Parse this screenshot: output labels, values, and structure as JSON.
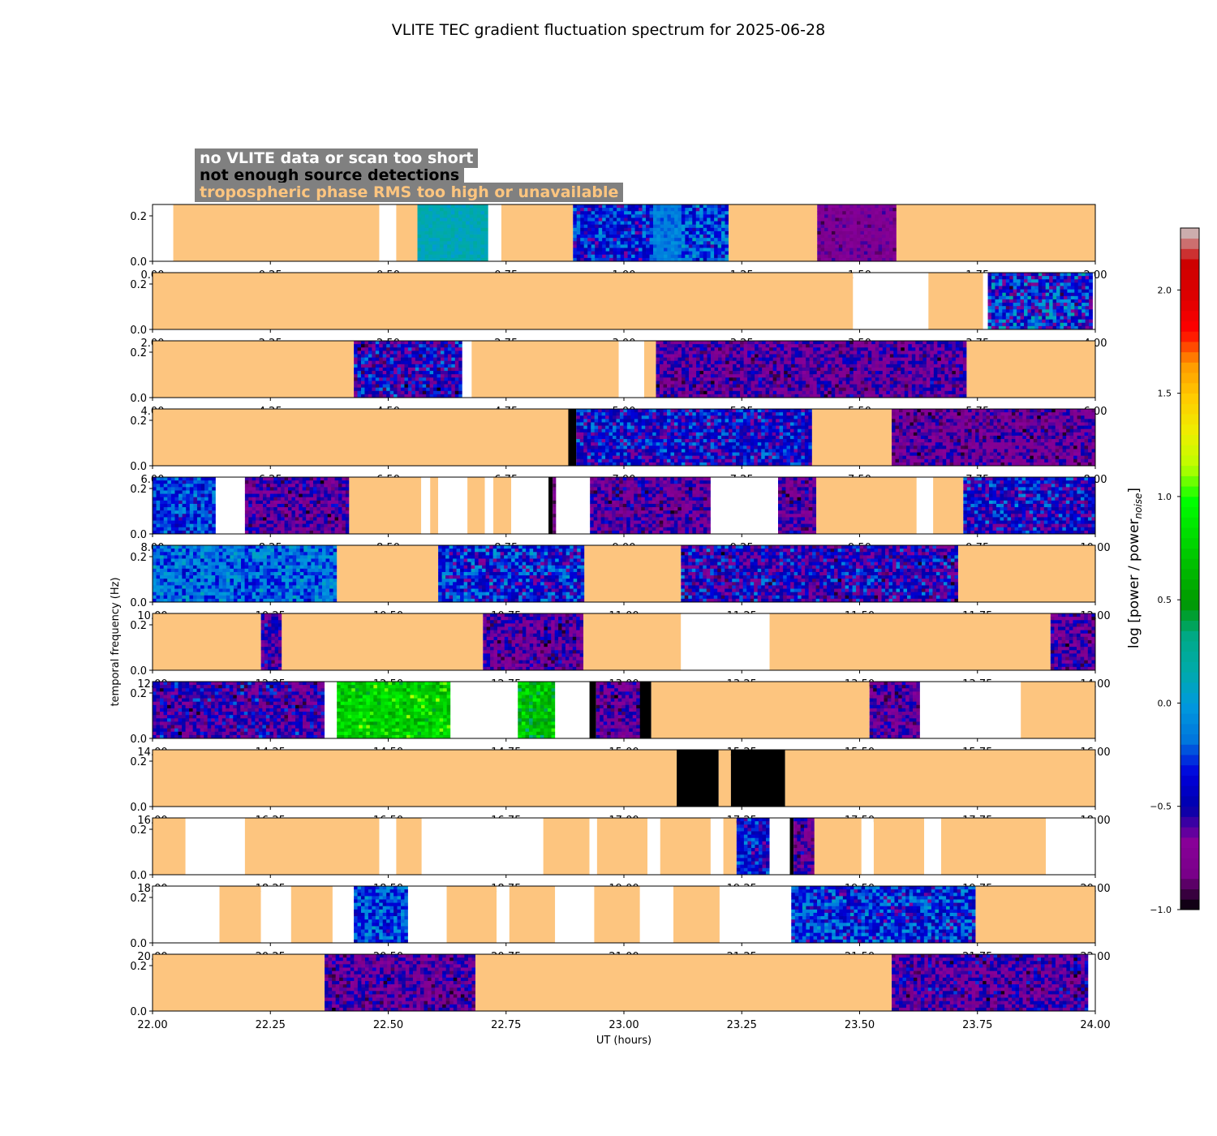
{
  "chart_data": {
    "type": "heatmap",
    "title": "VLITE TEC gradient fluctuation spectrum for 2025-06-28",
    "xlabel": "UT (hours)",
    "ylabel": "temporal frequency (Hz)",
    "y_ticks": [
      "0.0",
      "0.2"
    ],
    "ylim": [
      0,
      0.25
    ],
    "colorbar": {
      "label": "log [power / power",
      "label_subscript": "noise",
      "label_close": "]",
      "ticks": [
        "−1.0",
        "−0.5",
        "0.0",
        "0.5",
        "1.0",
        "1.5",
        "2.0"
      ],
      "range": [
        -1.0,
        2.3
      ],
      "colormap": "nipy_spectral"
    },
    "legend": [
      {
        "label": "no VLITE data or scan too short",
        "color": "#ffffff"
      },
      {
        "label": "not enough source detections",
        "color": "#000000"
      },
      {
        "label": "tropospheric phase RMS too high or unavailable",
        "color": "#fdc57f"
      }
    ],
    "category_colors": {
      "none": "#ffffff",
      "det": "#000000",
      "trop": "#fdc57f"
    },
    "panels": [
      {
        "range": [
          0,
          2
        ],
        "ticks": [
          "0.00",
          "0.25",
          "0.50",
          "0.75",
          "1.00",
          "1.25",
          "1.50",
          "1.75",
          "2.00"
        ],
        "segments": [
          [
            0,
            0.044,
            "none"
          ],
          [
            0.044,
            0.481,
            "trop"
          ],
          [
            0.481,
            0.517,
            "none"
          ],
          [
            0.517,
            0.562,
            "trop"
          ],
          [
            0.562,
            0.712,
            "data",
            0.3,
            0.38
          ],
          [
            0.712,
            0.74,
            "none"
          ],
          [
            0.74,
            0.892,
            "trop"
          ],
          [
            0.892,
            1.062,
            "data",
            0.08,
            0.32
          ],
          [
            1.062,
            1.122,
            "data",
            0.22,
            0.3
          ],
          [
            1.122,
            1.222,
            "data",
            0.1,
            0.36
          ],
          [
            1.222,
            1.41,
            "trop"
          ],
          [
            1.41,
            1.578,
            "data",
            0.02,
            0.14
          ],
          [
            1.578,
            2.0,
            "trop"
          ]
        ]
      },
      {
        "range": [
          2,
          4
        ],
        "ticks": [
          "2.00",
          "2.25",
          "2.50",
          "2.75",
          "3.00",
          "3.25",
          "3.50",
          "3.75",
          "4.00"
        ],
        "segments": [
          [
            2.0,
            3.486,
            "trop"
          ],
          [
            3.486,
            3.646,
            "none"
          ],
          [
            3.646,
            3.762,
            "trop"
          ],
          [
            3.762,
            3.772,
            "none"
          ],
          [
            3.772,
            3.994,
            "data",
            0.0,
            0.4
          ]
        ]
      },
      {
        "range": [
          4,
          6
        ],
        "ticks": [
          "4.00",
          "4.25",
          "4.50",
          "4.75",
          "5.00",
          "5.25",
          "5.50",
          "5.75",
          "6.00"
        ],
        "segments": [
          [
            4.0,
            4.427,
            "trop"
          ],
          [
            4.427,
            4.657,
            "data",
            0.0,
            0.3
          ],
          [
            4.657,
            4.677,
            "none"
          ],
          [
            4.677,
            4.989,
            "trop"
          ],
          [
            4.989,
            5.043,
            "none"
          ],
          [
            5.043,
            5.068,
            "trop"
          ],
          [
            5.068,
            5.727,
            "data",
            0.0,
            0.22
          ],
          [
            5.727,
            6.0,
            "trop"
          ]
        ]
      },
      {
        "range": [
          6,
          8
        ],
        "ticks": [
          "6.00",
          "6.25",
          "6.50",
          "6.75",
          "7.00",
          "7.25",
          "7.50",
          "7.75",
          "8.00"
        ],
        "segments": [
          [
            6.0,
            6.882,
            "trop"
          ],
          [
            6.882,
            6.899,
            "det"
          ],
          [
            6.899,
            7.399,
            "data",
            0.05,
            0.3
          ],
          [
            7.399,
            7.568,
            "trop"
          ],
          [
            7.568,
            8.0,
            "data",
            0.0,
            0.2
          ]
        ]
      },
      {
        "range": [
          8,
          10
        ],
        "ticks": [
          "8.00",
          "8.25",
          "8.50",
          "8.75",
          "9.00",
          "9.25",
          "9.50",
          "9.75",
          "10.00"
        ],
        "segments": [
          [
            8.0,
            8.134,
            "data",
            0.12,
            0.32
          ],
          [
            8.134,
            8.196,
            "none"
          ],
          [
            8.196,
            8.417,
            "data",
            0.0,
            0.22
          ],
          [
            8.417,
            8.57,
            "trop"
          ],
          [
            8.57,
            8.589,
            "none"
          ],
          [
            8.589,
            8.606,
            "trop"
          ],
          [
            8.606,
            8.668,
            "none"
          ],
          [
            8.668,
            8.705,
            "trop"
          ],
          [
            8.705,
            8.723,
            "none"
          ],
          [
            8.723,
            8.761,
            "trop"
          ],
          [
            8.761,
            8.84,
            "none"
          ],
          [
            8.84,
            8.849,
            "det"
          ],
          [
            8.849,
            8.856,
            "data",
            0.0,
            0.15
          ],
          [
            8.856,
            8.928,
            "none"
          ],
          [
            8.928,
            9.184,
            "data",
            0.0,
            0.22
          ],
          [
            9.184,
            9.327,
            "none"
          ],
          [
            9.327,
            9.408,
            "data",
            0.0,
            0.22
          ],
          [
            9.408,
            9.621,
            "trop"
          ],
          [
            9.621,
            9.656,
            "none"
          ],
          [
            9.656,
            9.72,
            "trop"
          ],
          [
            9.72,
            10.0,
            "data",
            0.04,
            0.3
          ]
        ]
      },
      {
        "range": [
          10,
          12
        ],
        "ticks": [
          "10.00",
          "10.25",
          "10.50",
          "10.75",
          "11.00",
          "11.25",
          "11.50",
          "11.75",
          "12.00"
        ],
        "segments": [
          [
            10.0,
            10.391,
            "data",
            0.15,
            0.36
          ],
          [
            10.391,
            10.606,
            "trop"
          ],
          [
            10.606,
            10.916,
            "data",
            0.05,
            0.34
          ],
          [
            10.916,
            11.121,
            "trop"
          ],
          [
            11.121,
            11.709,
            "data",
            0.0,
            0.3
          ],
          [
            11.709,
            12.0,
            "trop"
          ]
        ]
      },
      {
        "range": [
          12,
          14
        ],
        "ticks": [
          "12.00",
          "12.25",
          "12.50",
          "12.75",
          "13.00",
          "13.25",
          "13.50",
          "13.75",
          "14.00"
        ],
        "segments": [
          [
            12.0,
            12.23,
            "trop"
          ],
          [
            12.23,
            12.274,
            "data",
            0.02,
            0.25
          ],
          [
            12.274,
            12.701,
            "trop"
          ],
          [
            12.701,
            12.914,
            "data",
            0.0,
            0.22
          ],
          [
            12.914,
            13.121,
            "trop"
          ],
          [
            13.121,
            13.309,
            "none"
          ],
          [
            13.309,
            13.905,
            "trop"
          ],
          [
            13.905,
            14.0,
            "data",
            0.0,
            0.22
          ]
        ]
      },
      {
        "range": [
          14,
          16
        ],
        "ticks": [
          "14.00",
          "14.25",
          "14.50",
          "14.75",
          "15.00",
          "15.25",
          "15.50",
          "15.75",
          "16.00"
        ],
        "segments": [
          [
            14.0,
            14.365,
            "data",
            0.0,
            0.26
          ],
          [
            14.365,
            14.391,
            "none"
          ],
          [
            14.391,
            14.632,
            "data",
            0.42,
            0.65
          ],
          [
            14.632,
            14.775,
            "none"
          ],
          [
            14.775,
            14.854,
            "data",
            0.38,
            0.62
          ],
          [
            14.854,
            14.927,
            "none"
          ],
          [
            14.927,
            14.941,
            "det"
          ],
          [
            14.941,
            15.034,
            "data",
            0.0,
            0.22
          ],
          [
            15.034,
            15.058,
            "det"
          ],
          [
            15.058,
            15.521,
            "trop"
          ],
          [
            15.521,
            15.628,
            "data",
            0.0,
            0.22
          ],
          [
            15.628,
            15.842,
            "none"
          ],
          [
            15.842,
            16.0,
            "trop"
          ]
        ]
      },
      {
        "range": [
          16,
          18
        ],
        "ticks": [
          "16.00",
          "16.25",
          "16.50",
          "16.75",
          "17.00",
          "17.25",
          "17.50",
          "17.75",
          "18.00"
        ],
        "segments": [
          [
            16.0,
            17.112,
            "trop"
          ],
          [
            17.112,
            17.201,
            "det"
          ],
          [
            17.201,
            17.227,
            "trop"
          ],
          [
            17.227,
            17.342,
            "det"
          ],
          [
            17.342,
            18.0,
            "trop"
          ]
        ]
      },
      {
        "range": [
          18,
          20
        ],
        "ticks": [
          "18.00",
          "18.25",
          "18.50",
          "18.75",
          "19.00",
          "19.25",
          "19.50",
          "19.75",
          "20.00"
        ],
        "segments": [
          [
            18.0,
            18.07,
            "trop"
          ],
          [
            18.07,
            18.196,
            "none"
          ],
          [
            18.196,
            18.481,
            "trop"
          ],
          [
            18.481,
            18.517,
            "none"
          ],
          [
            18.517,
            18.571,
            "trop"
          ],
          [
            18.571,
            18.829,
            "none"
          ],
          [
            18.829,
            18.927,
            "trop"
          ],
          [
            18.927,
            18.943,
            "none"
          ],
          [
            18.943,
            19.05,
            "trop"
          ],
          [
            19.05,
            19.077,
            "none"
          ],
          [
            19.077,
            19.184,
            "trop"
          ],
          [
            19.184,
            19.211,
            "none"
          ],
          [
            19.211,
            19.239,
            "trop"
          ],
          [
            19.239,
            19.309,
            "data",
            0.08,
            0.3
          ],
          [
            19.309,
            19.352,
            "none"
          ],
          [
            19.352,
            19.36,
            "det"
          ],
          [
            19.36,
            19.404,
            "data",
            0.0,
            0.22
          ],
          [
            19.404,
            19.504,
            "trop"
          ],
          [
            19.504,
            19.53,
            "none"
          ],
          [
            19.53,
            19.637,
            "trop"
          ],
          [
            19.637,
            19.673,
            "none"
          ],
          [
            19.673,
            19.895,
            "trop"
          ],
          [
            19.895,
            20.0,
            "none"
          ]
        ]
      },
      {
        "range": [
          20,
          22
        ],
        "ticks": [
          "20.00",
          "20.25",
          "20.50",
          "20.75",
          "21.00",
          "21.25",
          "21.50",
          "21.75",
          "22.00"
        ],
        "segments": [
          [
            20.0,
            20.142,
            "none"
          ],
          [
            20.142,
            20.23,
            "trop"
          ],
          [
            20.23,
            20.294,
            "none"
          ],
          [
            20.294,
            20.382,
            "trop"
          ],
          [
            20.382,
            20.427,
            "none"
          ],
          [
            20.427,
            20.542,
            "data",
            0.12,
            0.34
          ],
          [
            20.542,
            20.624,
            "none"
          ],
          [
            20.624,
            20.73,
            "trop"
          ],
          [
            20.73,
            20.757,
            "none"
          ],
          [
            20.757,
            20.854,
            "trop"
          ],
          [
            20.854,
            20.937,
            "none"
          ],
          [
            20.937,
            21.034,
            "trop"
          ],
          [
            21.034,
            21.105,
            "none"
          ],
          [
            21.105,
            21.203,
            "trop"
          ],
          [
            21.203,
            21.355,
            "none"
          ],
          [
            21.355,
            21.746,
            "data",
            0.08,
            0.34
          ],
          [
            21.746,
            22.0,
            "trop"
          ]
        ]
      },
      {
        "range": [
          22,
          24
        ],
        "ticks": [
          "22.00",
          "22.25",
          "22.50",
          "22.75",
          "23.00",
          "23.25",
          "23.50",
          "23.75",
          "24.00"
        ],
        "segments": [
          [
            22.0,
            22.365,
            "trop"
          ],
          [
            22.365,
            22.685,
            "data",
            0.0,
            0.22
          ],
          [
            22.685,
            23.568,
            "trop"
          ],
          [
            23.568,
            23.985,
            "data",
            0.0,
            0.24
          ],
          [
            23.985,
            24.0,
            "none"
          ]
        ]
      }
    ]
  }
}
